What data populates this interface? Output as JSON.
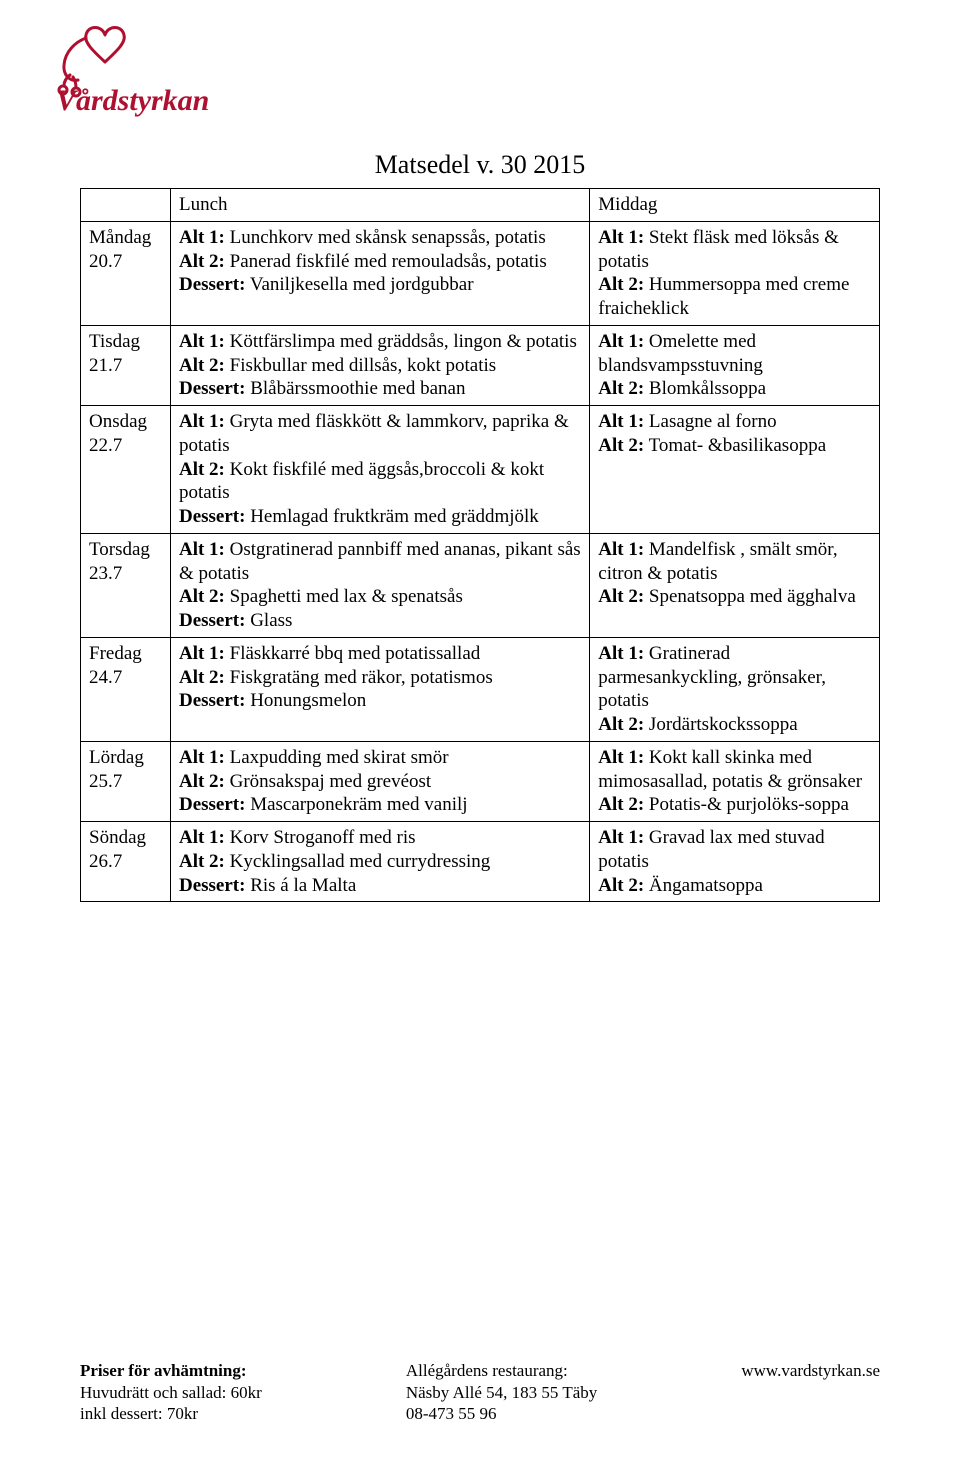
{
  "logo": {
    "name": "Vårdstyrkan",
    "stroke": "#b01030"
  },
  "title": "Matsedel v. 30 2015",
  "header": {
    "lunch": "Lunch",
    "middag": "Middag"
  },
  "rows": [
    {
      "day1": "Måndag",
      "day2": "20.7",
      "lunch": [
        {
          "b": "Alt 1:",
          "t": "  Lunchkorv med skånsk senapssås, potatis"
        },
        {
          "b": "Alt 2:",
          "t": " Panerad fiskfilé med remouladsås, potatis"
        },
        {
          "b": "Dessert:",
          "t": " Vaniljkesella med jordgubbar"
        }
      ],
      "middag": [
        {
          "b": "Alt 1:",
          "t": " Stekt fläsk med löksås & potatis"
        },
        {
          "b": "Alt 2:",
          "t": " Hummersoppa med creme fraicheklick"
        }
      ]
    },
    {
      "day1": "Tisdag",
      "day2": "21.7",
      "lunch": [
        {
          "b": "Alt 1:",
          "t": " Köttfärslimpa med gräddsås, lingon & potatis"
        },
        {
          "b": "Alt 2:",
          "t": "  Fiskbullar med dillsås, kokt potatis"
        },
        {
          "b": "Dessert:",
          "t": " Blåbärssmoothie med  banan"
        }
      ],
      "middag": [
        {
          "b": "Alt 1:",
          "t": "  Omelette med blandsvampsstuvning"
        },
        {
          "b": "Alt 2:",
          "t": " Blomkålssoppa"
        }
      ]
    },
    {
      "day1": "Onsdag",
      "day2": "22.7",
      "lunch": [
        {
          "b": "Alt 1:",
          "t": " Gryta med fläskkött & lammkorv, paprika & potatis"
        },
        {
          "b": "Alt 2:",
          "t": " Kokt fiskfilé med äggsås,broccoli & kokt potatis"
        },
        {
          "b": "Dessert:",
          "t": " Hemlagad fruktkräm med gräddmjölk"
        }
      ],
      "middag": [
        {
          "b": "Alt 1:",
          "t": " Lasagne al forno"
        },
        {
          "b": "Alt 2:",
          "t": " Tomat- &basilikasoppa"
        }
      ]
    },
    {
      "day1": "Torsdag",
      "day2": "23.7",
      "lunch": [
        {
          "b": "Alt 1:",
          "t": " Ostgratinerad pannbiff med ananas, pikant sås & potatis"
        },
        {
          "b": "Alt 2:",
          "t": " Spaghetti med lax & spenatsås"
        },
        {
          "b": "Dessert:",
          "t": " Glass"
        }
      ],
      "middag": [
        {
          "b": "Alt 1:",
          "t": " Mandelfisk , smält smör, citron & potatis"
        },
        {
          "b": "Alt 2:",
          "t": " Spenatsoppa med ägghalva"
        }
      ]
    },
    {
      "day1": "Fredag",
      "day2": "24.7",
      "lunch": [
        {
          "b": "Alt 1:",
          "t": " Fläskkarré bbq med potatissallad"
        },
        {
          "b": "Alt 2:",
          "t": " Fiskgratäng med räkor, potatismos"
        },
        {
          "b": "Dessert:",
          "t": " Honungsmelon"
        }
      ],
      "middag": [
        {
          "b": "Alt 1:",
          "t": "  Gratinerad parmesankyckling, grönsaker, potatis"
        },
        {
          "b": "Alt 2:",
          "t": " Jordärtskockssoppa"
        }
      ]
    },
    {
      "day1": "Lördag",
      "day2": "25.7",
      "lunch": [
        {
          "b": "Alt 1:",
          "t": " Laxpudding med skirat smör"
        },
        {
          "b": "Alt 2:",
          "t": " Grönsakspaj med grevéost"
        },
        {
          "b": "Dessert:",
          "t": " Mascarponekräm med vanilj"
        }
      ],
      "middag": [
        {
          "b": "Alt 1:",
          "t": "  Kokt kall skinka med mimosasallad, potatis & grönsaker"
        },
        {
          "b": "Alt 2:",
          "t": "  Potatis-& purjolöks-soppa"
        }
      ]
    },
    {
      "day1": "Söndag",
      "day2": "26.7",
      "lunch": [
        {
          "b": "Alt 1:",
          "t": " Korv Stroganoff med ris"
        },
        {
          "b": "Alt 2:",
          "t": " Kycklingsallad med currydressing"
        },
        {
          "b": "Dessert:",
          "t": " Ris á la Malta"
        }
      ],
      "middag": [
        {
          "b": "Alt 1:",
          "t": " Gravad lax med stuvad potatis"
        },
        {
          "b": "Alt 2:",
          "t": " Ängamatsoppa"
        }
      ]
    }
  ],
  "footer": {
    "left_bold": "Priser för avhämtning:",
    "left1": "Huvudrätt och sallad: 60kr",
    "left2": "inkl dessert: 70kr",
    "mid1": "Allégårdens restaurang:",
    "mid2": "Näsby Allé 54, 183 55 Täby",
    "mid3": "08-473 55 96",
    "right": "www.vardstyrkan.se"
  }
}
